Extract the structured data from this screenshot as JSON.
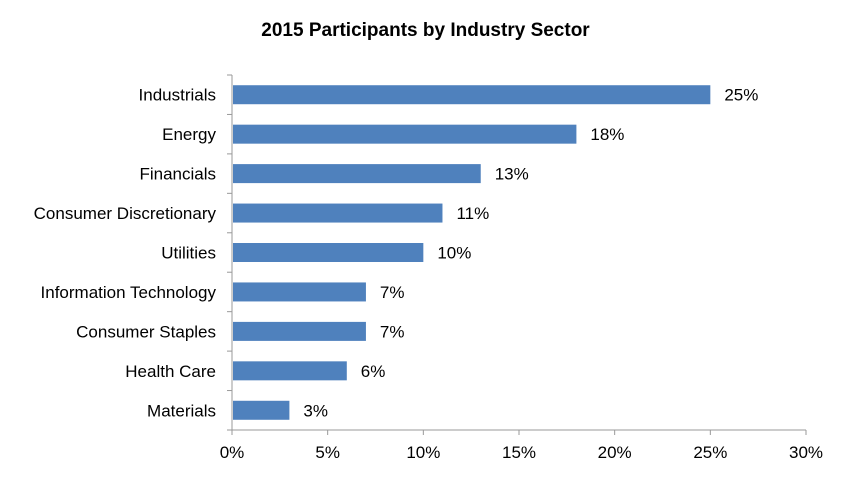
{
  "chart_data": {
    "type": "bar",
    "orientation": "horizontal",
    "title": "2015 Participants by Industry Sector",
    "xlabel": "",
    "ylabel": "",
    "categories": [
      "Industrials",
      "Energy",
      "Financials",
      "Consumer Discretionary",
      "Utilities",
      "Information Technology",
      "Consumer Staples",
      "Health Care",
      "Materials"
    ],
    "values": [
      25,
      18,
      13,
      11,
      10,
      7,
      7,
      6,
      3
    ],
    "data_labels": [
      "25%",
      "18%",
      "13%",
      "11%",
      "10%",
      "7%",
      "7%",
      "6%",
      "3%"
    ],
    "xlim": [
      0,
      30
    ],
    "x_ticks": [
      0,
      5,
      10,
      15,
      20,
      25,
      30
    ],
    "x_tick_labels": [
      "0%",
      "5%",
      "10%",
      "15%",
      "20%",
      "25%",
      "30%"
    ],
    "grid": false,
    "legend": "none",
    "bar_color": "#4F81BD",
    "axis_color": "#999999"
  }
}
